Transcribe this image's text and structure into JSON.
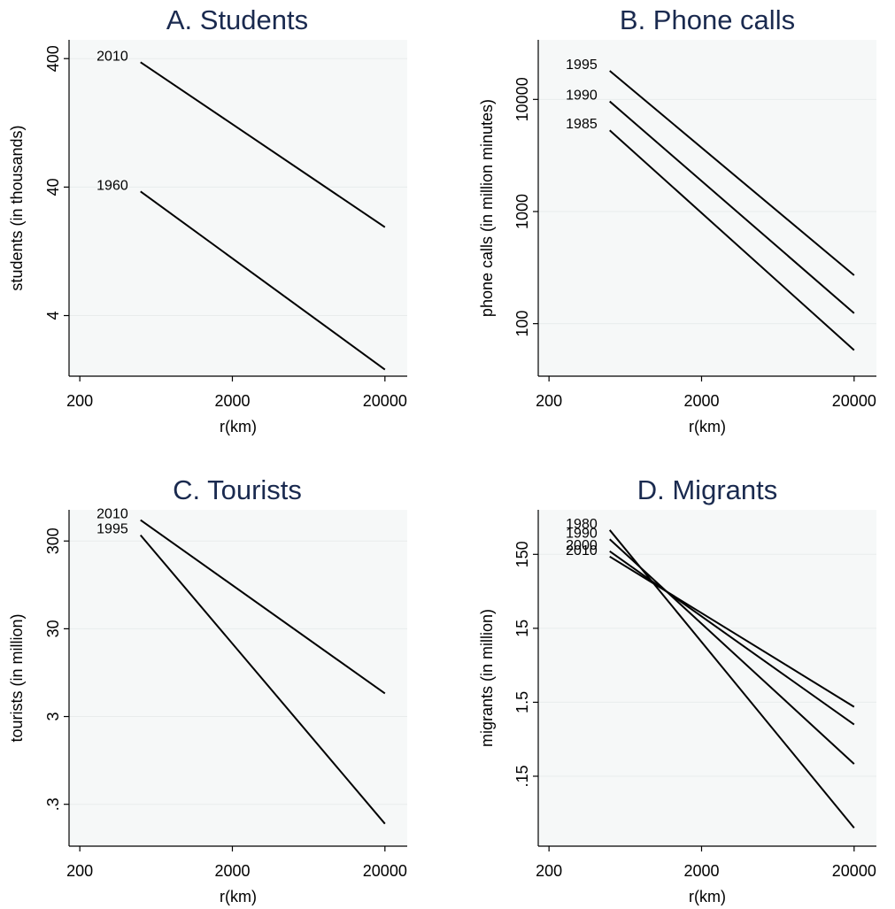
{
  "chart_data": [
    {
      "type": "line",
      "title": "A. Students",
      "xlabel": "r(km)",
      "ylabel": "students (in thousands)",
      "x_scale": "log",
      "y_scale": "log",
      "xticks": [
        200,
        2000,
        20000
      ],
      "xtick_labels": [
        "200",
        "2000",
        "20000"
      ],
      "yticks": [
        4,
        40,
        400
      ],
      "ytick_labels": [
        "4",
        "40",
        "400"
      ],
      "xlim": [
        170,
        28000
      ],
      "ylim": [
        1.35,
        560
      ],
      "grid": true,
      "series": [
        {
          "name": "2010",
          "x": [
            500,
            20000
          ],
          "y": [
            375,
            19.5
          ]
        },
        {
          "name": "1960",
          "x": [
            500,
            20000
          ],
          "y": [
            37,
            1.52
          ]
        }
      ]
    },
    {
      "type": "line",
      "title": "B. Phone calls",
      "xlabel": "r(km)",
      "ylabel": "phone calls (in million minutes)",
      "x_scale": "log",
      "y_scale": "log",
      "xticks": [
        200,
        2000,
        20000
      ],
      "xtick_labels": [
        "200",
        "2000",
        "20000"
      ],
      "yticks": [
        100,
        1000,
        10000
      ],
      "ytick_labels": [
        "100",
        "1000",
        "10000"
      ],
      "xlim": [
        170,
        28000
      ],
      "ylim": [
        34,
        34000
      ],
      "grid": true,
      "series": [
        {
          "name": "1995",
          "x": [
            500,
            20000
          ],
          "y": [
            18000,
            270
          ]
        },
        {
          "name": "1990",
          "x": [
            500,
            20000
          ],
          "y": [
            9600,
            124
          ]
        },
        {
          "name": "1985",
          "x": [
            500,
            20000
          ],
          "y": [
            5300,
            58
          ]
        }
      ]
    },
    {
      "type": "line",
      "title": "C. Tourists",
      "xlabel": "r(km)",
      "ylabel": "tourists (in million)",
      "x_scale": "log",
      "y_scale": "log",
      "xticks": [
        200,
        2000,
        20000
      ],
      "xtick_labels": [
        "200",
        "2000",
        "20000"
      ],
      "yticks": [
        0.3,
        3,
        30,
        300
      ],
      "ytick_labels": [
        ".3",
        "3",
        "30",
        "300"
      ],
      "xlim": [
        170,
        28000
      ],
      "ylim": [
        0.1,
        680
      ],
      "grid": true,
      "series": [
        {
          "name": "2010",
          "x": [
            500,
            20000
          ],
          "y": [
            520,
            5.5
          ]
        },
        {
          "name": "1995",
          "x": [
            500,
            20000
          ],
          "y": [
            350,
            0.18
          ]
        }
      ]
    },
    {
      "type": "line",
      "title": "D. Migrants",
      "xlabel": "r(km)",
      "ylabel": "migrants (in million)",
      "x_scale": "log",
      "y_scale": "log",
      "xticks": [
        200,
        2000,
        20000
      ],
      "xtick_labels": [
        "200",
        "2000",
        "20000"
      ],
      "yticks": [
        0.15,
        1.5,
        15,
        150
      ],
      "ytick_labels": [
        ".15",
        "1.5",
        "15",
        "150"
      ],
      "xlim": [
        170,
        28000
      ],
      "ylim": [
        0.017,
        600
      ],
      "grid": true,
      "series": [
        {
          "name": "1980",
          "x": [
            500,
            20000
          ],
          "y": [
            320,
            0.03
          ]
        },
        {
          "name": "1990",
          "x": [
            500,
            20000
          ],
          "y": [
            240,
            0.22
          ]
        },
        {
          "name": "2000",
          "x": [
            500,
            20000
          ],
          "y": [
            165,
            0.75
          ]
        },
        {
          "name": "2010",
          "x": [
            500,
            20000
          ],
          "y": [
            140,
            1.3
          ]
        }
      ]
    }
  ]
}
